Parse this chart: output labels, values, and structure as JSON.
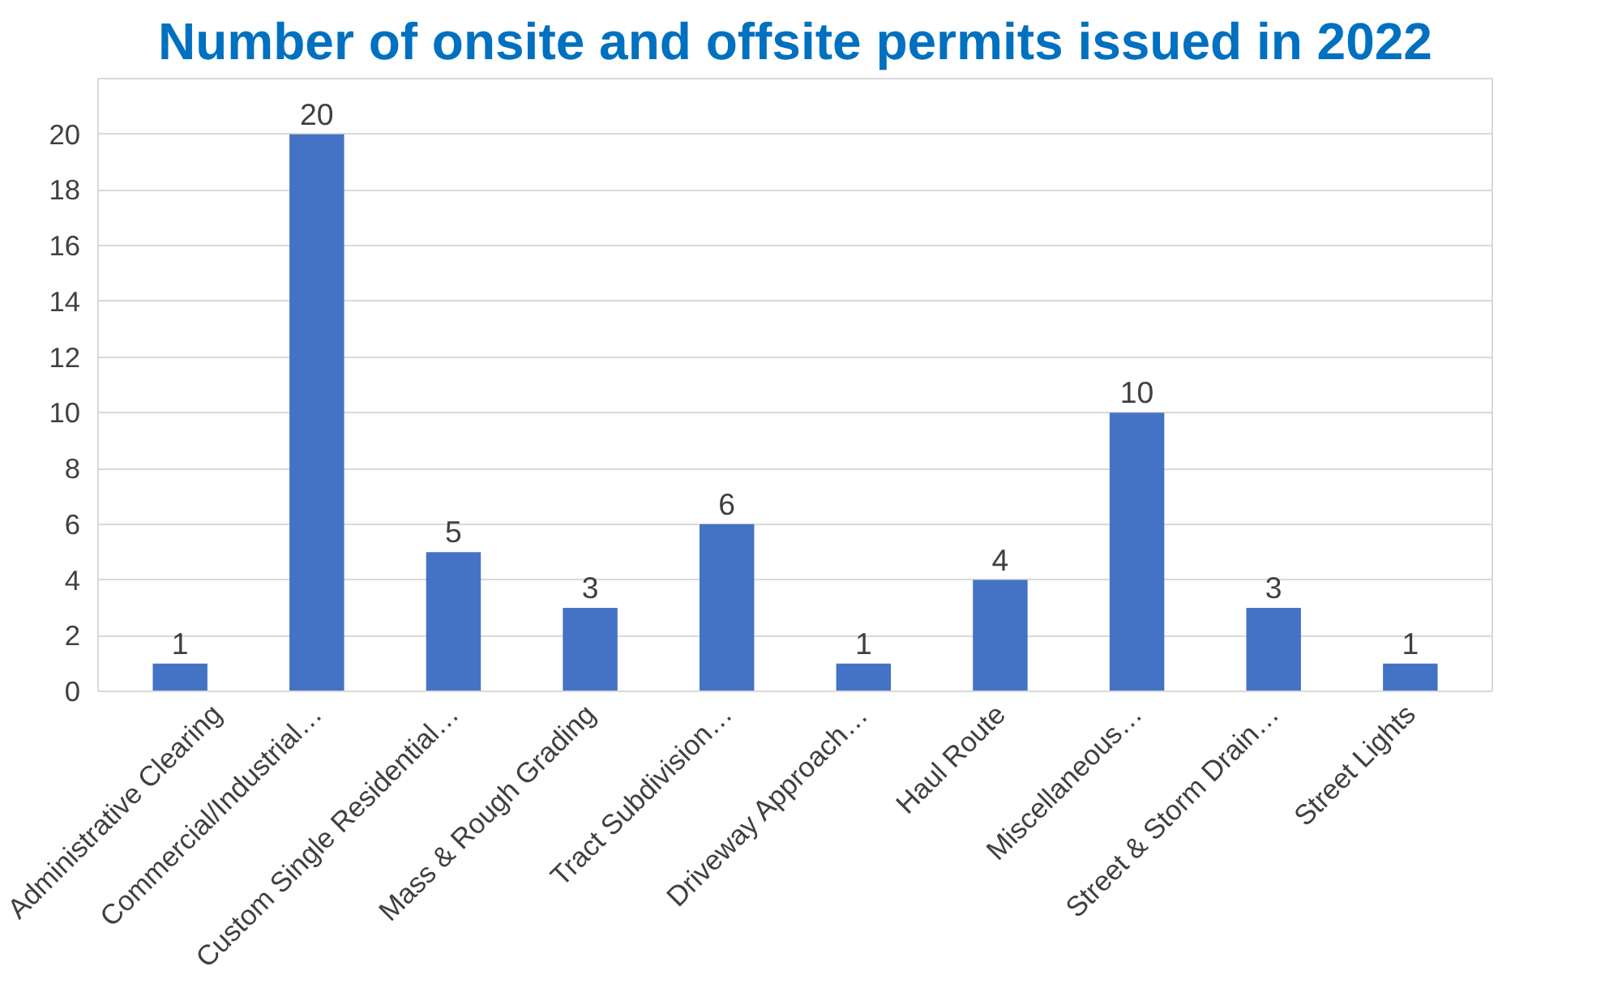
{
  "chart_data": {
    "type": "bar",
    "title": "Number of onsite and offsite permits issued in 2022",
    "categories": [
      "Administrative Clearing",
      "Commercial/Industrial…",
      "Custom Single Residential…",
      "Mass & Rough Grading",
      "Tract Subdivision…",
      "Driveway Approach…",
      "Haul Route",
      "Miscellaneous…",
      "Street & Storm Drain…",
      "Street Lights"
    ],
    "values": [
      1,
      20,
      5,
      3,
      6,
      1,
      4,
      10,
      3,
      1
    ],
    "color": "#4472c4",
    "ylim": [
      0,
      22
    ],
    "yticks": [
      0,
      2,
      4,
      6,
      8,
      10,
      12,
      14,
      16,
      18,
      20
    ],
    "grid": "y",
    "data_labels": true
  }
}
